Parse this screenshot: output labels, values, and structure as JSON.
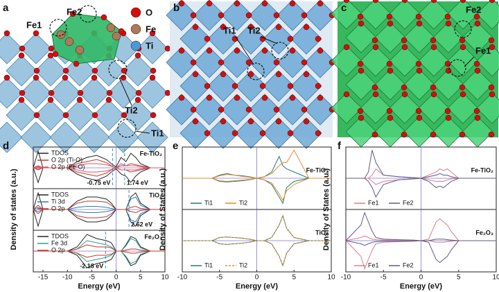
{
  "structures": [
    {
      "label": "a",
      "sites": [
        "Fe2",
        "Fe1",
        "Ti2",
        "Ti1"
      ],
      "atoms": [
        "O",
        "Fe",
        "Ti"
      ]
    },
    {
      "label": "b",
      "sites": [
        "Ti1",
        "Ti2"
      ]
    },
    {
      "label": "c",
      "sites": [
        "Fe2",
        "Fe1"
      ]
    }
  ],
  "chart_data": [
    {
      "type": "line",
      "panel": "d",
      "xlabel": "Energy (eV)",
      "ylabel": "Density of states (a.u.)",
      "xlim": [
        -17,
        10
      ],
      "xticks": [
        -15,
        -10,
        -5,
        0,
        5,
        10
      ],
      "legend": "upper left",
      "x": [
        -17,
        -16,
        -15,
        -10,
        -8,
        -6,
        -4,
        -2,
        -1,
        0,
        1,
        2,
        3,
        4,
        5,
        7,
        10
      ],
      "subplots": [
        {
          "label": "Fe-TiO₂",
          "ylim": [
            -1,
            1
          ],
          "vlines": [
            {
              "value": -0.75,
              "label": "-0.75 eV"
            },
            {
              "value": 1.74,
              "label": "1.74 eV"
            }
          ],
          "series": [
            {
              "name": "TDOS",
              "color": "#222222",
              "values": [
                0,
                0.8,
                0,
                0,
                0.3,
                0.5,
                0.6,
                0.4,
                0.2,
                0.05,
                0.5,
                0.3,
                0.7,
                0.5,
                0.2,
                0,
                0
              ],
              "spin_down": [
                0,
                -0.7,
                0,
                0,
                -0.3,
                -0.5,
                -0.6,
                -0.4,
                -0.2,
                -0.05,
                -0.3,
                -0.4,
                -0.7,
                -0.4,
                -0.2,
                0,
                0
              ]
            },
            {
              "name": "O 2p (Ti-O)",
              "color": "#c0392b",
              "values": [
                0,
                0.1,
                0,
                0,
                0.2,
                0.3,
                0.4,
                0.25,
                0.1,
                0,
                0.1,
                0.1,
                0.2,
                0.15,
                0.1,
                0,
                0
              ],
              "spin_down": [
                0,
                -0.1,
                0,
                0,
                -0.2,
                -0.3,
                -0.4,
                -0.25,
                -0.1,
                0,
                -0.1,
                -0.1,
                -0.2,
                -0.15,
                -0.1,
                0,
                0
              ]
            },
            {
              "name": "O 2p (Fe-O)",
              "color": "#e0506a",
              "values": [
                0,
                0.05,
                0,
                0,
                0.1,
                0.2,
                0.2,
                0.15,
                0.08,
                0,
                0.2,
                0.1,
                0.1,
                0.1,
                0.05,
                0,
                0
              ],
              "spin_down": [
                0,
                -0.05,
                0,
                0,
                -0.1,
                -0.2,
                -0.2,
                -0.15,
                -0.08,
                0,
                -0.1,
                -0.1,
                -0.1,
                -0.1,
                -0.05,
                0,
                0
              ]
            }
          ]
        },
        {
          "label": "TiO₂",
          "ylim": [
            -1,
            1
          ],
          "vlines": [
            {
              "value": 2.62,
              "label": "2.62 eV"
            }
          ],
          "series": [
            {
              "name": "TDOS",
              "color": "#222222",
              "values": [
                0,
                0.8,
                0,
                0,
                0.4,
                0.6,
                0.6,
                0.5,
                0.3,
                0,
                0,
                0,
                0.6,
                0.8,
                0.3,
                0,
                0
              ],
              "spin_down": [
                0,
                -0.8,
                0,
                0,
                -0.4,
                -0.6,
                -0.6,
                -0.5,
                -0.3,
                0,
                0,
                0,
                -0.6,
                -0.8,
                -0.3,
                0,
                0
              ]
            },
            {
              "name": "Ti 3d",
              "color": "#2a7ab8",
              "values": [
                0,
                0.1,
                0,
                0,
                0.1,
                0.15,
                0.15,
                0.1,
                0.05,
                0,
                0,
                0,
                0.5,
                0.6,
                0.2,
                0,
                0
              ],
              "spin_down": [
                0,
                -0.1,
                0,
                0,
                -0.1,
                -0.15,
                -0.15,
                -0.1,
                -0.05,
                0,
                0,
                0,
                -0.5,
                -0.6,
                -0.2,
                0,
                0
              ]
            },
            {
              "name": "O 2p",
              "color": "#c0392b",
              "values": [
                0,
                0.2,
                0,
                0,
                0.3,
                0.4,
                0.4,
                0.35,
                0.2,
                0,
                0,
                0,
                0.1,
                0.15,
                0.05,
                0,
                0
              ],
              "spin_down": [
                0,
                -0.2,
                0,
                0,
                -0.3,
                -0.4,
                -0.4,
                -0.35,
                -0.2,
                0,
                0,
                0,
                -0.1,
                -0.15,
                -0.05,
                0,
                0
              ]
            }
          ]
        },
        {
          "label": "Fe₂O₃",
          "ylim": [
            -1,
            1
          ],
          "vlines": [
            {
              "value": -2.18,
              "label": "-2.18 eV"
            }
          ],
          "series": [
            {
              "name": "TDOS",
              "color": "#222222",
              "values": [
                0,
                0,
                0,
                0,
                0.2,
                0.8,
                0.6,
                0.5,
                0.4,
                0,
                0,
                0.3,
                0.7,
                0.6,
                0.2,
                0,
                0
              ],
              "spin_down": [
                0,
                0,
                0,
                0,
                -0.2,
                -0.8,
                -0.6,
                -0.5,
                -0.4,
                0,
                0,
                -0.3,
                -0.7,
                -0.6,
                -0.2,
                0,
                0
              ]
            },
            {
              "name": "Fe 3d",
              "color": "#2a9d8f",
              "values": [
                0,
                0,
                0,
                0,
                0.1,
                0.5,
                0.4,
                0.3,
                0.2,
                0,
                0,
                0.25,
                0.6,
                0.5,
                0.15,
                0,
                0
              ],
              "spin_down": [
                0,
                0,
                0,
                0,
                -0.1,
                -0.5,
                -0.4,
                -0.3,
                -0.2,
                0,
                0,
                -0.25,
                -0.6,
                -0.5,
                -0.15,
                0,
                0
              ]
            },
            {
              "name": "O 2p",
              "color": "#c0392b",
              "values": [
                0,
                0,
                0,
                0,
                0.1,
                0.3,
                0.2,
                0.2,
                0.15,
                0,
                0,
                0.05,
                0.1,
                0.1,
                0.05,
                0,
                0
              ],
              "spin_down": [
                0,
                0,
                0,
                0,
                -0.1,
                -0.3,
                -0.2,
                -0.2,
                -0.15,
                0,
                0,
                -0.05,
                -0.1,
                -0.1,
                -0.05,
                0,
                0
              ]
            }
          ]
        }
      ]
    },
    {
      "type": "line",
      "panel": "e",
      "xlabel": "Energy (eV)",
      "ylabel": "Density of States (a.u.)",
      "xlim": [
        -10,
        10
      ],
      "xticks": [
        -10,
        -5,
        0,
        5,
        10
      ],
      "legend": "lower left",
      "x": [
        -10,
        -6,
        -5,
        -4,
        -3,
        -2,
        -1,
        0,
        1,
        2,
        3,
        3.5,
        4,
        5,
        7,
        10
      ],
      "subplots": [
        {
          "label": "Fe-TiO₂",
          "ylim": [
            -1,
            1
          ],
          "series": [
            {
              "name": "Ti1",
              "color": "#1f7a6b",
              "values": [
                0,
                0,
                0.1,
                0.15,
                0.1,
                0.08,
                0.05,
                0,
                0.05,
                0.2,
                0.7,
                0.4,
                0.3,
                0.2,
                0,
                0
              ],
              "spin_down": [
                0,
                0,
                -0.1,
                -0.12,
                -0.1,
                -0.08,
                -0.05,
                0,
                -0.05,
                -0.2,
                -0.6,
                -0.8,
                -0.3,
                -0.1,
                0,
                0
              ]
            },
            {
              "name": "Ti2",
              "color": "#e8892a",
              "values": [
                0,
                0,
                0.08,
                0.12,
                0.1,
                0.06,
                0.04,
                0,
                0.05,
                0.15,
                0.4,
                0.5,
                0.5,
                0.9,
                0,
                0
              ],
              "spin_down": [
                0,
                0,
                -0.08,
                -0.1,
                -0.08,
                -0.06,
                -0.04,
                0,
                -0.05,
                -0.15,
                -0.5,
                -0.7,
                -0.4,
                -0.2,
                0,
                0
              ]
            }
          ]
        },
        {
          "label": "TiO₂",
          "ylim": [
            -1,
            1
          ],
          "series": [
            {
              "name": "Ti1",
              "color": "#1f7a6b",
              "values": [
                0,
                0,
                0.1,
                0.12,
                0.1,
                0.08,
                0.05,
                0,
                0,
                0.1,
                0.5,
                0.8,
                0.4,
                0.1,
                0,
                0
              ],
              "spin_down": [
                0,
                0,
                -0.1,
                -0.12,
                -0.1,
                -0.08,
                -0.05,
                0,
                0,
                -0.1,
                -0.5,
                -0.8,
                -0.4,
                -0.1,
                0,
                0
              ]
            },
            {
              "name": "Ti2",
              "color": "#e8892a",
              "dashed": true,
              "values": [
                0,
                0,
                0.1,
                0.12,
                0.1,
                0.08,
                0.05,
                0,
                0,
                0.1,
                0.5,
                0.8,
                0.4,
                0.1,
                0,
                0
              ],
              "spin_down": [
                0,
                0,
                -0.1,
                -0.12,
                -0.1,
                -0.08,
                -0.05,
                0,
                0,
                -0.1,
                -0.5,
                -0.8,
                -0.4,
                -0.1,
                0,
                0
              ]
            }
          ]
        }
      ]
    },
    {
      "type": "line",
      "panel": "f",
      "xlabel": "Energy (eV)",
      "ylabel": "Density of States (a.u.)",
      "xlim": [
        -10,
        10
      ],
      "xticks": [
        -10,
        -5,
        0,
        5,
        10
      ],
      "legend": "lower left",
      "x": [
        -10,
        -8,
        -7.5,
        -7,
        -6.5,
        -6,
        -5,
        -3,
        -1,
        0,
        1,
        2,
        2.5,
        3,
        3.5,
        4,
        5,
        10
      ],
      "subplots": [
        {
          "label": "Fe-TiO₂",
          "ylim": [
            -1,
            1
          ],
          "series": [
            {
              "name": "Fe1",
              "color": "#e07a8f",
              "values": [
                0,
                0,
                0,
                0,
                0.1,
                0.3,
                0.1,
                0.05,
                0.02,
                0,
                0.1,
                0.2,
                0.3,
                0.25,
                0.3,
                0.2,
                0,
                0
              ],
              "spin_down": [
                0,
                0,
                0,
                0,
                -0.1,
                -0.2,
                -0.1,
                -0.05,
                -0.02,
                0,
                -0.05,
                -0.1,
                -0.1,
                -0.1,
                -0.05,
                -0.02,
                0,
                0
              ]
            },
            {
              "name": "Fe2",
              "color": "#5c5a86",
              "values": [
                0,
                0,
                0,
                0.2,
                0.9,
                0.5,
                0.1,
                0.05,
                0.02,
                0,
                0.05,
                0.1,
                0.15,
                0.1,
                0.1,
                0.05,
                0,
                0
              ],
              "spin_down": [
                0,
                0,
                0,
                -0.1,
                -0.3,
                -0.6,
                -0.2,
                -0.05,
                -0.02,
                0,
                -0.1,
                -0.3,
                -0.25,
                -0.3,
                -0.2,
                -0.1,
                0,
                0
              ]
            }
          ]
        },
        {
          "label": "Fe₂O₃",
          "ylim": [
            -1,
            1
          ],
          "series": [
            {
              "name": "Fe1",
              "color": "#e07a8f",
              "values": [
                0,
                0.1,
                0.15,
                0.1,
                0.05,
                0.03,
                0.02,
                0.02,
                0.01,
                0,
                0.05,
                0.6,
                0.7,
                0.6,
                0.5,
                0.3,
                0,
                0
              ],
              "spin_down": [
                0,
                -0.5,
                -0.9,
                -0.6,
                -0.3,
                -0.1,
                -0.05,
                -0.03,
                -0.02,
                0,
                0,
                -0.05,
                -0.05,
                -0.05,
                -0.03,
                -0.02,
                0,
                0
              ]
            },
            {
              "name": "Fe2",
              "color": "#5c5a86",
              "values": [
                0,
                0.5,
                0.9,
                0.6,
                0.3,
                0.1,
                0.05,
                0.03,
                0.02,
                0,
                0,
                0.05,
                0.05,
                0.05,
                0.03,
                0.02,
                0,
                0
              ],
              "spin_down": [
                0,
                -0.1,
                -0.15,
                -0.1,
                -0.05,
                -0.03,
                -0.02,
                -0.02,
                -0.01,
                0,
                -0.05,
                -0.6,
                -0.7,
                -0.6,
                -0.5,
                -0.3,
                0,
                0
              ]
            }
          ]
        }
      ]
    }
  ]
}
